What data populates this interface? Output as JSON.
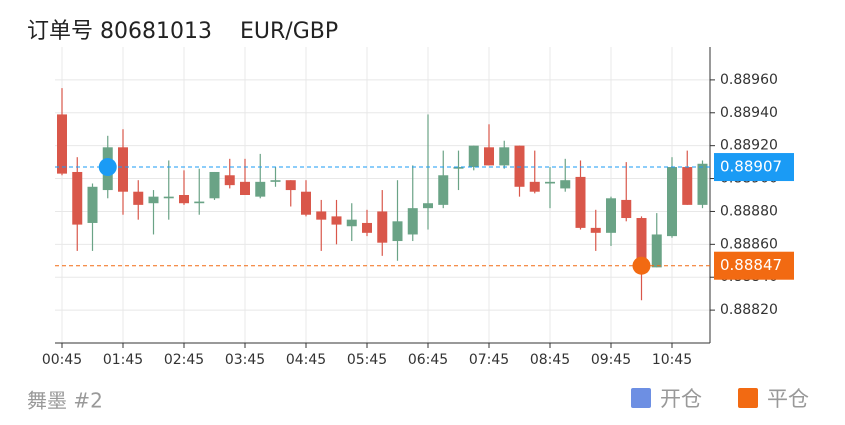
{
  "chart_data": {
    "type": "candlestick",
    "title": "订单号 80681013",
    "subtitle": "EUR/GBP",
    "footer": "舞墨 #2",
    "categories": [
      "00:45",
      null,
      null,
      null,
      "01:45",
      null,
      null,
      null,
      "02:45",
      null,
      null,
      null,
      "03:45",
      null,
      null,
      null,
      "04:45",
      null,
      null,
      null,
      "05:45",
      null,
      null,
      null,
      "06:45",
      null,
      null,
      null,
      "07:45",
      null,
      null,
      null,
      "08:45",
      null,
      null,
      null,
      "09:45",
      null,
      null,
      null,
      "10:45",
      null,
      null
    ],
    "up_color": "#6aa386",
    "down_color": "#d9574a",
    "open": [
      0.88939,
      0.88904,
      0.88873,
      0.88893,
      0.88919,
      0.88892,
      0.88885,
      0.88888,
      0.8889,
      0.88885,
      0.88888,
      0.88902,
      0.88898,
      0.88889,
      0.88898,
      0.88899,
      0.88892,
      0.8888,
      0.88877,
      0.88871,
      0.88873,
      0.8888,
      0.88862,
      0.88866,
      0.88882,
      0.88884,
      0.88906,
      0.88907,
      0.88919,
      0.88908,
      0.8892,
      0.88898,
      0.88897,
      0.88894,
      0.88901,
      0.8887,
      0.88867,
      0.88887,
      0.88876,
      0.88846,
      0.88865,
      0.88907,
      0.88884
    ],
    "high": [
      0.88955,
      0.88913,
      0.88897,
      0.88926,
      0.8893,
      0.88899,
      0.88893,
      0.88911,
      0.88905,
      0.88906,
      0.88904,
      0.88912,
      0.88912,
      0.88915,
      0.88907,
      0.88899,
      0.88899,
      0.88887,
      0.88887,
      0.88885,
      0.88881,
      0.88893,
      0.88899,
      0.88908,
      0.88939,
      0.88917,
      0.88917,
      0.8892,
      0.88933,
      0.88923,
      0.8892,
      0.88917,
      0.88907,
      0.88912,
      0.88911,
      0.88881,
      0.88889,
      0.8891,
      0.88877,
      0.88879,
      0.88913,
      0.88917,
      0.88911
    ],
    "low": [
      0.88902,
      0.88856,
      0.88856,
      0.88888,
      0.88878,
      0.88875,
      0.88866,
      0.88875,
      0.88884,
      0.88878,
      0.88887,
      0.88894,
      0.8889,
      0.88888,
      0.88895,
      0.88883,
      0.88877,
      0.88856,
      0.8886,
      0.88862,
      0.88865,
      0.88853,
      0.8885,
      0.88862,
      0.88869,
      0.88882,
      0.88893,
      0.88905,
      0.88908,
      0.88906,
      0.88889,
      0.88891,
      0.88882,
      0.88892,
      0.88869,
      0.88856,
      0.88859,
      0.88874,
      0.88826,
      0.88846,
      0.88864,
      0.88884,
      0.88882
    ],
    "close": [
      0.88903,
      0.88872,
      0.88895,
      0.88919,
      0.88892,
      0.88884,
      0.88889,
      0.88889,
      0.88885,
      0.88886,
      0.88904,
      0.88896,
      0.8889,
      0.88898,
      0.88899,
      0.88893,
      0.88878,
      0.88875,
      0.88872,
      0.88875,
      0.88867,
      0.88861,
      0.88874,
      0.88882,
      0.88885,
      0.88902,
      0.88907,
      0.8892,
      0.88908,
      0.88919,
      0.88895,
      0.88892,
      0.88898,
      0.88899,
      0.8887,
      0.88867,
      0.88888,
      0.88876,
      0.88845,
      0.88866,
      0.88907,
      0.88884,
      0.88909
    ],
    "ylim": [
      0.888,
      0.8898
    ],
    "yticks": [
      {
        "value": 0.8882,
        "label": "0.88820"
      },
      {
        "value": 0.8884,
        "label": "0.88840"
      },
      {
        "value": 0.8886,
        "label": "0.88860"
      },
      {
        "value": 0.8888,
        "label": "0.88880"
      },
      {
        "value": 0.889,
        "label": "0.88900"
      },
      {
        "value": 0.8892,
        "label": "0.88920"
      },
      {
        "value": 0.8894,
        "label": "0.88940"
      },
      {
        "value": 0.8896,
        "label": "0.88960"
      }
    ],
    "grid": true,
    "markers": [
      {
        "name": "开仓",
        "at": 3,
        "value": 0.88907,
        "color": "#1a9bf5",
        "legend_color": "#6d8fe3"
      },
      {
        "name": "平仓",
        "at": 38,
        "value": 0.88847,
        "color": "#f26a12",
        "legend_color": "#f26a12"
      }
    ]
  }
}
